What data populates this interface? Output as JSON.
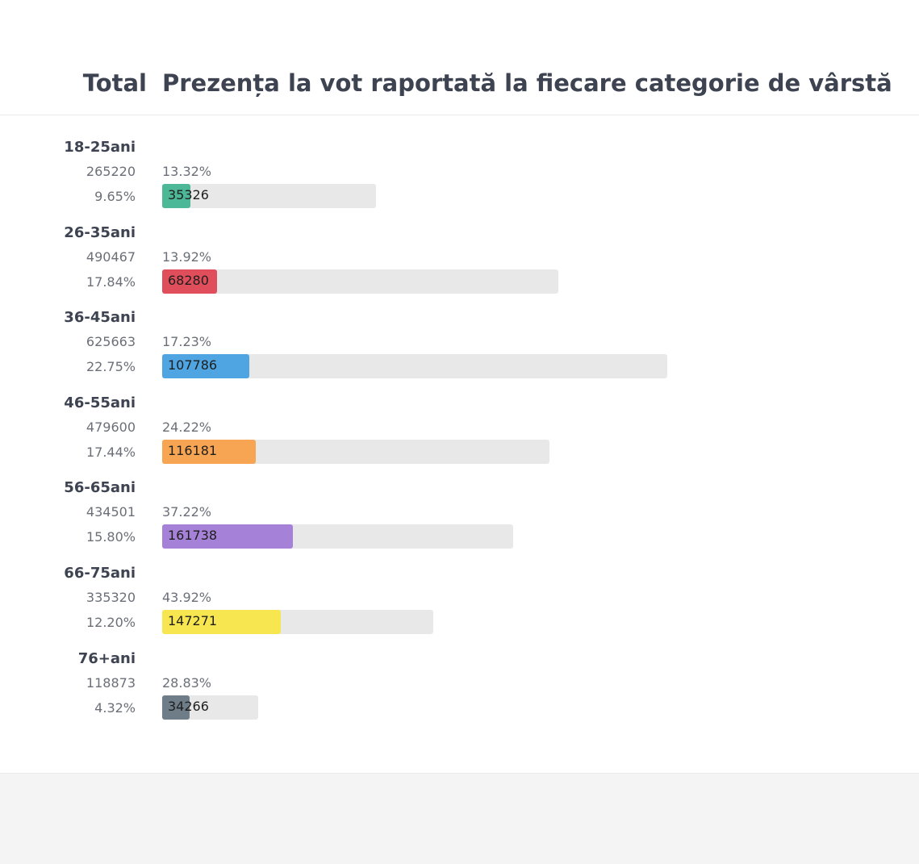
{
  "header": {
    "total_label": "Total",
    "title": "Prezența la vot raportată la fiecare categorie de vârstă"
  },
  "chart_data": {
    "type": "bar",
    "title": "Prezența la vot raportată la fiecare categorie de vârstă",
    "categories": [
      "18-25ani",
      "26-35ani",
      "36-45ani",
      "46-55ani",
      "56-65ani",
      "66-75ani",
      "76+ani"
    ],
    "groups": [
      {
        "age": "18-25ani",
        "total": "265220",
        "share": "9.65%",
        "turnout": "13.32%",
        "votes": "35326",
        "total_value": 265220,
        "votes_value": 35326,
        "color": "#4cb897"
      },
      {
        "age": "26-35ani",
        "total": "490467",
        "share": "17.84%",
        "turnout": "13.92%",
        "votes": "68280",
        "total_value": 490467,
        "votes_value": 68280,
        "color": "#e04e5b"
      },
      {
        "age": "36-45ani",
        "total": "625663",
        "share": "22.75%",
        "turnout": "17.23%",
        "votes": "107786",
        "total_value": 625663,
        "votes_value": 107786,
        "color": "#4fa5e2"
      },
      {
        "age": "46-55ani",
        "total": "479600",
        "share": "17.44%",
        "turnout": "24.22%",
        "votes": "116181",
        "total_value": 479600,
        "votes_value": 116181,
        "color": "#f7a552"
      },
      {
        "age": "56-65ani",
        "total": "434501",
        "share": "15.80%",
        "turnout": "37.22%",
        "votes": "161738",
        "total_value": 434501,
        "votes_value": 161738,
        "color": "#a582d7"
      },
      {
        "age": "66-75ani",
        "total": "335320",
        "share": "12.20%",
        "turnout": "43.92%",
        "votes": "147271",
        "total_value": 335320,
        "votes_value": 147271,
        "color": "#f7e64f"
      },
      {
        "age": "76+ani",
        "total": "118873",
        "share": "4.32%",
        "turnout": "28.83%",
        "votes": "34266",
        "total_value": 118873,
        "votes_value": 34266,
        "color": "#6f7d89"
      }
    ]
  }
}
